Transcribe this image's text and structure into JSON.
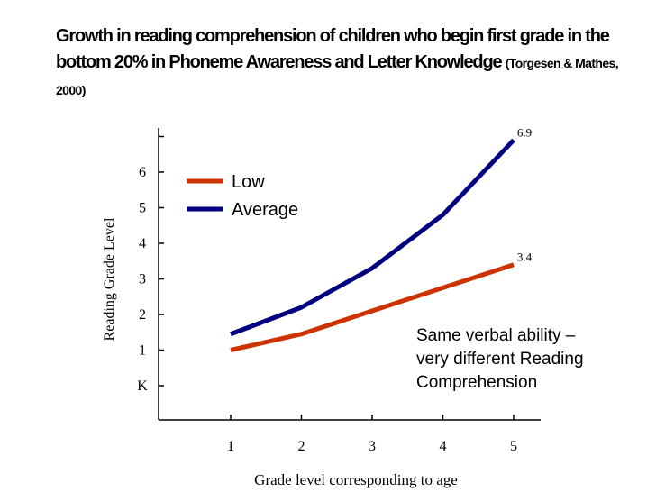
{
  "title": {
    "main": "Growth in reading comprehension of children who begin first grade in the bottom 20% in Phoneme Awareness and Letter Knowledge",
    "citation": "(Torgesen & Mathes, 2000)"
  },
  "annotation": {
    "lines": [
      "Same verbal ability –",
      "very different Reading",
      "Comprehension"
    ]
  },
  "chart_data": {
    "type": "line",
    "title": "Growth in reading comprehension of children who begin first grade in the bottom 20% in Phoneme Awareness and Letter Knowledge (Torgesen & Mathes, 2000)",
    "xlabel": "Grade level corresponding to age",
    "ylabel": "Reading Grade Level",
    "categories": [
      "1",
      "2",
      "3",
      "4",
      "5"
    ],
    "y_tick_labels": [
      "K",
      "1",
      "2",
      "3",
      "4",
      "5",
      "6"
    ],
    "y_tick_values": [
      0,
      1,
      2,
      3,
      4,
      5,
      6
    ],
    "ylim": [
      -1,
      7
    ],
    "legend_position": "top-left",
    "series": [
      {
        "name": "Low",
        "color": "#cc3300",
        "values": [
          1.0,
          1.45,
          2.1,
          2.75,
          3.4
        ],
        "end_label": "3.4"
      },
      {
        "name": "Average",
        "color": "#000080",
        "values": [
          1.45,
          2.2,
          3.3,
          4.8,
          6.9
        ],
        "end_label": "6.9"
      }
    ]
  }
}
